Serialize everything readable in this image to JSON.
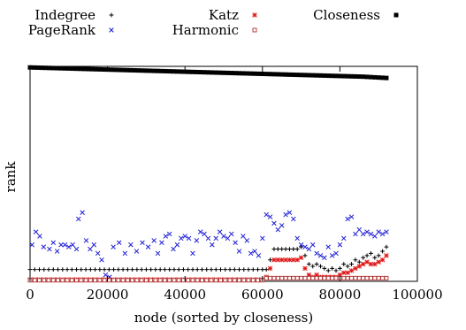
{
  "chart_data": {
    "type": "scatter",
    "xlabel": "node (sorted by closeness)",
    "ylabel": "rank",
    "xlim": [
      0,
      100000
    ],
    "ylim": [
      0,
      100
    ],
    "y_ticks_shown": false,
    "x_ticks": [
      0,
      20000,
      40000,
      60000,
      80000,
      100000
    ],
    "x_tick_labels": [
      "0",
      "20000",
      "40000",
      "60000",
      "80000",
      "100000"
    ],
    "grid": false,
    "legend_position": "top",
    "series": [
      {
        "name": "Indegree",
        "color": "#000000",
        "marker": "plus",
        "x": [
          0,
          1200,
          2400,
          3600,
          4800,
          6000,
          7200,
          8400,
          9600,
          10800,
          12000,
          13200,
          14400,
          15600,
          16800,
          18000,
          19200,
          20400,
          21600,
          22800,
          24000,
          25200,
          26400,
          27600,
          28800,
          30000,
          31200,
          32400,
          33600,
          34800,
          36000,
          37200,
          38400,
          39600,
          40800,
          42000,
          43200,
          44400,
          45600,
          46800,
          48000,
          49200,
          50400,
          51600,
          52800,
          54000,
          55200,
          56400,
          57600,
          58800,
          60000,
          61000,
          62000,
          63000,
          64000,
          65000,
          66000,
          67000,
          68000,
          69000,
          70000,
          71000,
          72000,
          73000,
          74000,
          75000,
          76000,
          77000,
          78000,
          79000,
          80000,
          81000,
          82000,
          83000,
          84000,
          85000,
          86000,
          87000,
          88000,
          89000,
          90000,
          91000,
          92000
        ],
        "values": [
          5.5,
          5.5,
          5.5,
          5.5,
          5.5,
          5.5,
          5.5,
          5.5,
          5.5,
          5.5,
          5.5,
          5.5,
          5.5,
          5.5,
          5.5,
          5.5,
          5.5,
          5.5,
          5.5,
          5.5,
          5.5,
          5.5,
          5.5,
          5.5,
          5.5,
          5.5,
          5.5,
          5.5,
          5.5,
          5.5,
          5.5,
          5.5,
          5.5,
          5.5,
          5.5,
          5.5,
          5.5,
          5.5,
          5.5,
          5.5,
          5.5,
          5.5,
          5.5,
          5.5,
          5.5,
          5.5,
          5.5,
          5.5,
          5.5,
          5.5,
          5.5,
          5.5,
          10,
          15,
          15,
          15,
          15,
          15,
          15,
          15,
          16,
          12,
          8,
          7,
          8,
          7,
          6,
          5,
          6,
          5,
          6,
          8,
          7,
          8,
          10,
          9,
          11,
          12,
          13,
          11,
          12,
          14,
          16
        ]
      },
      {
        "name": "PageRank",
        "color": "#1f1fd6",
        "marker": "x",
        "x": [
          500,
          1500,
          2500,
          3500,
          5000,
          6000,
          7000,
          8000,
          9000,
          10000,
          11000,
          12000,
          12500,
          13500,
          14500,
          15500,
          16500,
          17500,
          18500,
          19500,
          20500,
          21500,
          23000,
          24500,
          26000,
          27500,
          29000,
          30500,
          32000,
          33000,
          34000,
          35000,
          36000,
          37000,
          38000,
          39000,
          40000,
          41000,
          42000,
          43000,
          44000,
          45000,
          46000,
          47000,
          48000,
          49000,
          50000,
          51000,
          52000,
          53000,
          54000,
          55000,
          56000,
          57000,
          58000,
          59000,
          60000,
          61000,
          62000,
          63000,
          64000,
          65000,
          66000,
          67000,
          68000,
          69000,
          70000,
          71000,
          72000,
          73000,
          74000,
          75000,
          76000,
          77000,
          78000,
          79000,
          80000,
          81000,
          82000,
          83000,
          84000,
          85000,
          86000,
          87000,
          88000,
          89000,
          90000,
          91000,
          92000
        ],
        "values": [
          17,
          23,
          21,
          16,
          15,
          18,
          14,
          17,
          17,
          16,
          17,
          15,
          29,
          32,
          19,
          15,
          17,
          13,
          10,
          3,
          2,
          16,
          18,
          13,
          17,
          14,
          18,
          16,
          19,
          13,
          18,
          21,
          22,
          15,
          17,
          20,
          21,
          20,
          13,
          19,
          23,
          22,
          20,
          17,
          20,
          23,
          21,
          20,
          22,
          18,
          14,
          21,
          19,
          13,
          14,
          12,
          20,
          31,
          30,
          27,
          24,
          26,
          31,
          32,
          29,
          20,
          17,
          16,
          15,
          17,
          13,
          12,
          11,
          16,
          12,
          13,
          17,
          20,
          29,
          30,
          22,
          24,
          22,
          23,
          22,
          21,
          23,
          22,
          23
        ]
      },
      {
        "name": "Katz",
        "color": "#e01818",
        "marker": "asterisk",
        "x": [
          0,
          1200,
          2400,
          3600,
          4800,
          6000,
          7200,
          8400,
          9600,
          10800,
          12000,
          13200,
          14400,
          15600,
          16800,
          18000,
          19200,
          20400,
          21600,
          22800,
          24000,
          25200,
          26400,
          27600,
          28800,
          30000,
          31200,
          32400,
          33600,
          34800,
          36000,
          37200,
          38400,
          39600,
          40800,
          42000,
          43200,
          44400,
          45600,
          46800,
          48000,
          49200,
          50400,
          51600,
          52800,
          54000,
          55200,
          56400,
          57600,
          58800,
          60000,
          61000,
          62000,
          63000,
          64000,
          65000,
          66000,
          67000,
          68000,
          69000,
          70000,
          71000,
          72000,
          73000,
          74000,
          75000,
          76000,
          77000,
          78000,
          79000,
          80000,
          81000,
          82000,
          83000,
          84000,
          85000,
          86000,
          87000,
          88000,
          89000,
          90000,
          91000,
          92000
        ],
        "values": [
          0.8,
          0.8,
          0.8,
          0.8,
          0.8,
          0.8,
          0.8,
          0.8,
          0.8,
          0.8,
          0.8,
          0.8,
          0.8,
          0.8,
          0.8,
          0.8,
          0.8,
          0.8,
          0.8,
          0.8,
          0.8,
          0.8,
          0.8,
          0.8,
          0.8,
          0.8,
          0.8,
          0.8,
          0.8,
          0.8,
          0.8,
          0.8,
          0.8,
          0.8,
          0.8,
          0.8,
          0.8,
          0.8,
          0.8,
          0.8,
          0.8,
          0.8,
          0.8,
          0.8,
          0.8,
          0.8,
          0.8,
          0.8,
          0.8,
          0.8,
          0.8,
          2,
          6,
          10,
          10,
          10,
          10,
          10,
          10,
          10,
          11,
          6,
          3,
          2,
          3,
          2,
          2,
          2,
          2,
          2,
          3,
          4,
          4,
          5,
          6,
          7,
          8,
          9,
          8,
          8,
          9,
          10,
          12
        ]
      },
      {
        "name": "Harmonic",
        "color": "#b03030",
        "marker": "square",
        "x": [
          0,
          1200,
          2400,
          3600,
          4800,
          6000,
          7200,
          8400,
          9600,
          10800,
          12000,
          13200,
          14400,
          15600,
          16800,
          18000,
          19200,
          20400,
          21600,
          22800,
          24000,
          25200,
          26400,
          27600,
          28800,
          30000,
          31200,
          32400,
          33600,
          34800,
          36000,
          37200,
          38400,
          39600,
          40800,
          42000,
          43200,
          44400,
          45600,
          46800,
          48000,
          49200,
          50400,
          51600,
          52800,
          54000,
          55200,
          56400,
          57600,
          58800,
          60000,
          61000,
          62000,
          63000,
          64000,
          65000,
          66000,
          67000,
          68000,
          69000,
          70000,
          71000,
          72000,
          73000,
          74000,
          75000,
          76000,
          77000,
          78000,
          79000,
          80000,
          81000,
          82000,
          83000,
          84000,
          85000,
          86000,
          87000,
          88000,
          89000,
          90000,
          91000,
          92000
        ],
        "values": [
          0.5,
          0.5,
          0.5,
          0.5,
          0.5,
          0.5,
          0.5,
          0.5,
          0.5,
          0.5,
          0.5,
          0.5,
          0.5,
          0.5,
          0.5,
          0.5,
          0.5,
          0.5,
          0.5,
          0.5,
          0.5,
          0.5,
          0.5,
          0.5,
          0.5,
          0.5,
          0.5,
          0.5,
          0.5,
          0.5,
          0.5,
          0.5,
          0.5,
          0.5,
          0.5,
          0.5,
          0.5,
          0.5,
          0.5,
          0.5,
          0.5,
          0.5,
          0.5,
          0.5,
          0.5,
          0.5,
          0.5,
          0.5,
          0.5,
          0.5,
          0.5,
          1.5,
          1.5,
          1.5,
          1.5,
          1.5,
          1.5,
          1.5,
          1.5,
          1.5,
          1.5,
          1.5,
          1.5,
          1.5,
          1.5,
          1.5,
          1.5,
          1.5,
          1.5,
          1.5,
          1.5,
          1.5,
          1.5,
          1.5,
          1.5,
          1.5,
          1.5,
          1.5,
          1.5,
          1.5,
          1.5,
          1.5,
          1.5
        ]
      },
      {
        "name": "Closeness",
        "color": "#000000",
        "marker": "filled-square",
        "x": [
          0,
          1000,
          2000,
          3000,
          4000,
          5000,
          6000,
          7000,
          8000,
          9000,
          10000,
          11000,
          12000,
          13000,
          14000,
          15000,
          16000,
          17000,
          18000,
          19000,
          20000,
          21000,
          22000,
          23000,
          24000,
          25000,
          26000,
          27000,
          28000,
          29000,
          30000,
          31000,
          32000,
          33000,
          34000,
          35000,
          36000,
          37000,
          38000,
          39000,
          40000,
          41000,
          42000,
          43000,
          44000,
          45000,
          46000,
          47000,
          48000,
          49000,
          50000,
          51000,
          52000,
          53000,
          54000,
          55000,
          56000,
          57000,
          58000,
          59000,
          60000,
          61000,
          62000,
          63000,
          64000,
          65000,
          66000,
          67000,
          68000,
          69000,
          70000,
          71000,
          72000,
          73000,
          74000,
          75000,
          76000,
          77000,
          78000,
          79000,
          80000,
          81000,
          82000,
          83000,
          84000,
          85000,
          86000,
          87000,
          88000,
          89000,
          90000,
          91000,
          92000
        ],
        "values": [
          99.5,
          99.45,
          99.4,
          99.35,
          99.3,
          99.25,
          99.2,
          99.15,
          99.1,
          99.05,
          99,
          98.95,
          98.9,
          98.85,
          98.8,
          98.75,
          98.7,
          98.65,
          98.6,
          98.55,
          98.5,
          98.45,
          98.4,
          98.35,
          98.3,
          98.25,
          98.2,
          98.15,
          98.1,
          98.05,
          98,
          97.95,
          97.9,
          97.85,
          97.8,
          97.75,
          97.7,
          97.65,
          97.6,
          97.55,
          97.5,
          97.45,
          97.4,
          97.35,
          97.3,
          97.25,
          97.2,
          97.15,
          97.1,
          97.05,
          97,
          96.95,
          96.9,
          96.85,
          96.8,
          96.75,
          96.7,
          96.65,
          96.6,
          96.55,
          96.5,
          96.45,
          96.4,
          96.35,
          96.3,
          96.25,
          96.2,
          96.15,
          96.1,
          96.05,
          96,
          95.95,
          95.9,
          95.85,
          95.8,
          95.75,
          95.7,
          95.65,
          95.6,
          95.55,
          95.5,
          95.45,
          95.4,
          95.35,
          95.3,
          95.25,
          95.2,
          95.1,
          95,
          94.9,
          94.8,
          94.7,
          94.6
        ]
      }
    ]
  }
}
